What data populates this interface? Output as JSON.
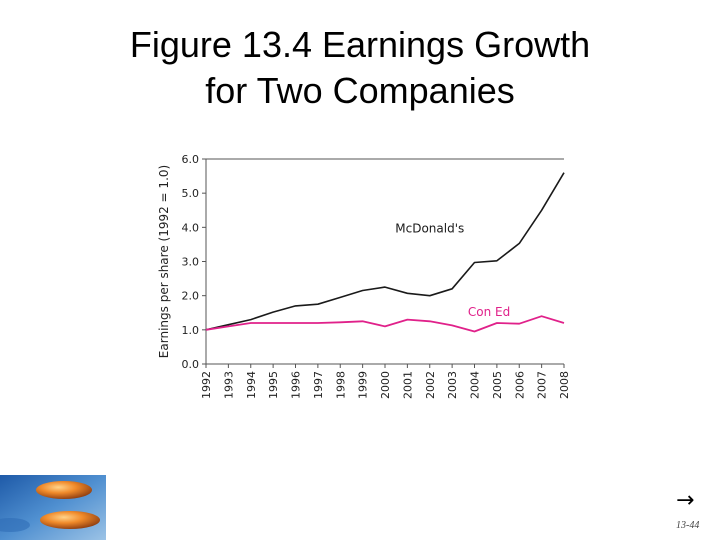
{
  "slide": {
    "title_line1": "Figure 13.4 Earnings Growth",
    "title_line2": "for Two Companies",
    "nav_arrow": "→",
    "slide_number": "13-44"
  },
  "colors": {
    "mcdonalds": "#1a1a1a",
    "coned": "#e0218a",
    "axis": "#555555",
    "tick_text": "#222222"
  },
  "icons": {
    "footer_image": "orange-stones-on-water-photo",
    "nav": "right-arrow-icon"
  },
  "chart_data": {
    "type": "line",
    "x": [
      "1992",
      "1993",
      "1994",
      "1995",
      "1996",
      "1997",
      "1998",
      "1999",
      "2000",
      "2001",
      "2002",
      "2003",
      "2004",
      "2005",
      "2006",
      "2007",
      "2008"
    ],
    "ylabel": "Earnings per share (1992 = 1.0)",
    "xlabel": "",
    "ylim": [
      0,
      6
    ],
    "yticks": [
      "0.0",
      "1.0",
      "2.0",
      "3.0",
      "4.0",
      "5.0",
      "6.0"
    ],
    "grid": false,
    "series": [
      {
        "name": "McDonald's",
        "values": [
          1.0,
          1.15,
          1.3,
          1.52,
          1.7,
          1.75,
          1.95,
          2.15,
          2.25,
          2.07,
          2.0,
          2.2,
          2.97,
          3.02,
          3.53,
          4.5,
          5.6
        ]
      },
      {
        "name": "Con Ed",
        "values": [
          1.0,
          1.1,
          1.2,
          1.2,
          1.2,
          1.2,
          1.22,
          1.25,
          1.1,
          1.3,
          1.25,
          1.13,
          0.95,
          1.2,
          1.18,
          1.4,
          1.2
        ]
      }
    ]
  }
}
